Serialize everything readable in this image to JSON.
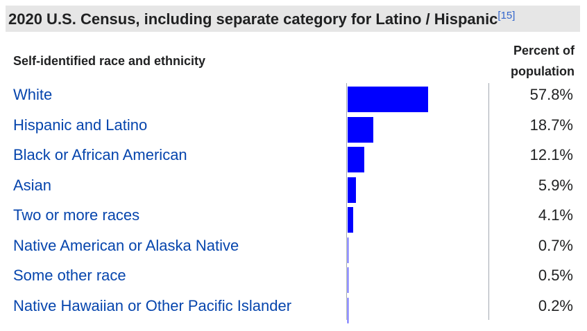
{
  "caption": {
    "title": "2020 U.S. Census, including separate category for Latino / Hispanic",
    "ref": "[15]"
  },
  "headers": {
    "left": "Self-identified race and ethnicity",
    "right_line1": "Percent of",
    "right_line2": "population"
  },
  "rows": [
    {
      "label": "White",
      "percent_text": "57.8%",
      "value": 57.8
    },
    {
      "label": "Hispanic and Latino",
      "percent_text": "18.7%",
      "value": 18.7
    },
    {
      "label": "Black or African American",
      "percent_text": "12.1%",
      "value": 12.1
    },
    {
      "label": "Asian",
      "percent_text": "5.9%",
      "value": 5.9
    },
    {
      "label": "Two or more races",
      "percent_text": "4.1%",
      "value": 4.1
    },
    {
      "label": "Native American or Alaska Native",
      "percent_text": "0.7%",
      "value": 0.7
    },
    {
      "label": "Some other race",
      "percent_text": "0.5%",
      "value": 0.5
    },
    {
      "label": "Native Hawaiian or Other Pacific Islander",
      "percent_text": "0.2%",
      "value": 0.2
    }
  ],
  "colors": {
    "bar": "#0000ff",
    "link": "#0645ad",
    "caption_bg": "#e6e6e6"
  }
}
